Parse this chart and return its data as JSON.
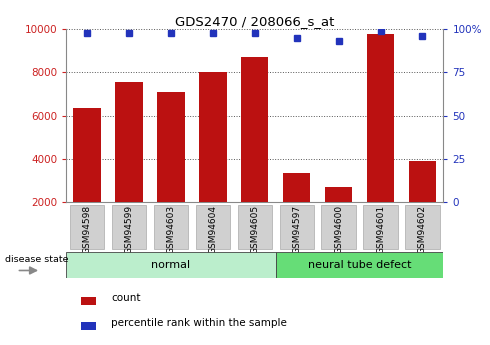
{
  "title": "GDS2470 / 208066_s_at",
  "samples": [
    "GSM94598",
    "GSM94599",
    "GSM94603",
    "GSM94604",
    "GSM94605",
    "GSM94597",
    "GSM94600",
    "GSM94601",
    "GSM94602"
  ],
  "counts": [
    6350,
    7550,
    7100,
    8000,
    8700,
    3350,
    2700,
    9800,
    3900
  ],
  "percentiles": [
    98,
    98,
    98,
    98,
    98,
    95,
    93,
    99,
    96
  ],
  "groups": [
    {
      "label": "normal",
      "count": 5
    },
    {
      "label": "neural tube defect",
      "count": 4
    }
  ],
  "ylim_left": [
    2000,
    10000
  ],
  "ylim_right": [
    0,
    100
  ],
  "yticks_left": [
    2000,
    4000,
    6000,
    8000,
    10000
  ],
  "yticks_right": [
    0,
    25,
    50,
    75,
    100
  ],
  "bar_color": "#bb1111",
  "dot_color": "#2233bb",
  "normal_bg": "#bbeecc",
  "ntd_bg": "#66dd77",
  "label_bg": "#d0d0d0",
  "grid_color": "#444444",
  "left_tick_color": "#cc2222",
  "right_tick_color": "#2233bb",
  "legend_count_label": "count",
  "legend_pct_label": "percentile rank within the sample",
  "disease_state_label": "disease state"
}
